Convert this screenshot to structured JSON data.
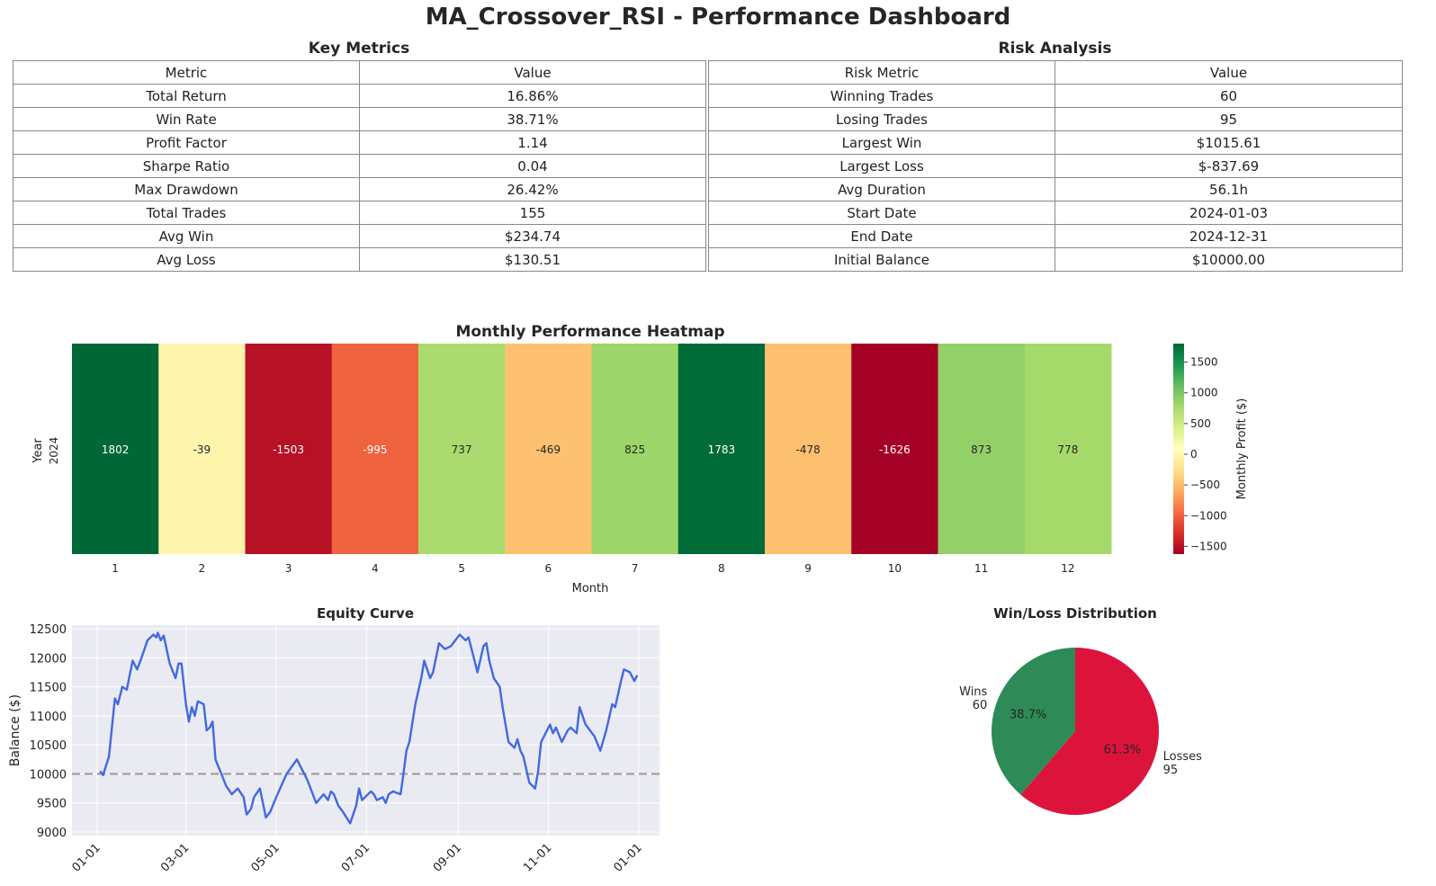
{
  "title": "MA_Crossover_RSI - Performance Dashboard",
  "key_metrics": {
    "title": "Key Metrics",
    "headers": [
      "Metric",
      "Value"
    ],
    "rows": [
      [
        "Total Return",
        "16.86%"
      ],
      [
        "Win Rate",
        "38.71%"
      ],
      [
        "Profit Factor",
        "1.14"
      ],
      [
        "Sharpe Ratio",
        "0.04"
      ],
      [
        "Max Drawdown",
        "26.42%"
      ],
      [
        "Total Trades",
        "155"
      ],
      [
        "Avg Win",
        "$234.74"
      ],
      [
        "Avg Loss",
        "$130.51"
      ]
    ]
  },
  "risk_analysis": {
    "title": "Risk Analysis",
    "headers": [
      "Risk Metric",
      "Value"
    ],
    "rows": [
      [
        "Winning Trades",
        "60"
      ],
      [
        "Losing Trades",
        "95"
      ],
      [
        "Largest Win",
        "$1015.61"
      ],
      [
        "Largest Loss",
        "$-837.69"
      ],
      [
        "Avg Duration",
        "56.1h"
      ],
      [
        "Start Date",
        "2024-01-03"
      ],
      [
        "End Date",
        "2024-12-31"
      ],
      [
        "Initial Balance",
        "$10000.00"
      ]
    ]
  },
  "chart_data": [
    {
      "type": "heatmap",
      "title": "Monthly Performance Heatmap",
      "xlabel": "Month",
      "ylabel": "Year",
      "y_categories": [
        "2024"
      ],
      "x_categories": [
        "1",
        "2",
        "3",
        "4",
        "5",
        "6",
        "7",
        "8",
        "9",
        "10",
        "11",
        "12"
      ],
      "values": [
        [
          1802,
          -39,
          -1503,
          -995,
          737,
          -469,
          825,
          1783,
          -478,
          -1626,
          873,
          778
        ]
      ],
      "colormap": "RdYlGn",
      "vmin": -1626,
      "vmax": 1802,
      "colorbar_label": "Monthly Profit ($)",
      "colorbar_ticks": [
        1500,
        1000,
        500,
        0,
        -500,
        -1000,
        -1500
      ]
    },
    {
      "type": "line",
      "title": "Equity Curve",
      "xlabel": "",
      "ylabel": "Balance ($)",
      "ylim": [
        9000,
        12500
      ],
      "y_ticks": [
        12500,
        12000,
        11500,
        11000,
        10500,
        10000,
        9500,
        9000
      ],
      "x_ticks": [
        "01-01",
        "03-01",
        "05-01",
        "07-01",
        "09-01",
        "11-01",
        "01-01"
      ],
      "x_tick_dates": [
        "2024-01-01",
        "2024-03-01",
        "2024-05-01",
        "2024-07-01",
        "2024-09-01",
        "2024-11-01",
        "2025-01-01"
      ],
      "reference_line": 10000,
      "grid": true,
      "color": "#4169e1",
      "x": [
        "2024-01-03",
        "2024-01-05",
        "2024-01-09",
        "2024-01-13",
        "2024-01-15",
        "2024-01-18",
        "2024-01-21",
        "2024-01-25",
        "2024-01-28",
        "2024-01-31",
        "2024-02-04",
        "2024-02-08",
        "2024-02-10",
        "2024-02-11",
        "2024-02-13",
        "2024-02-15",
        "2024-02-19",
        "2024-02-23",
        "2024-02-25",
        "2024-02-27",
        "2024-03-01",
        "2024-03-03",
        "2024-03-05",
        "2024-03-07",
        "2024-03-09",
        "2024-03-13",
        "2024-03-15",
        "2024-03-17",
        "2024-03-19",
        "2024-03-21",
        "2024-03-25",
        "2024-03-28",
        "2024-04-01",
        "2024-04-05",
        "2024-04-09",
        "2024-04-11",
        "2024-04-14",
        "2024-04-16",
        "2024-04-20",
        "2024-04-24",
        "2024-04-27",
        "2024-05-01",
        "2024-05-08",
        "2024-05-15",
        "2024-05-22",
        "2024-05-28",
        "2024-06-02",
        "2024-06-05",
        "2024-06-07",
        "2024-06-09",
        "2024-06-12",
        "2024-06-15",
        "2024-06-20",
        "2024-06-24",
        "2024-06-26",
        "2024-06-28",
        "2024-07-04",
        "2024-07-06",
        "2024-07-08",
        "2024-07-12",
        "2024-07-14",
        "2024-07-16",
        "2024-07-19",
        "2024-07-21",
        "2024-07-24",
        "2024-07-26",
        "2024-07-28",
        "2024-07-30",
        "2024-08-03",
        "2024-08-07",
        "2024-08-09",
        "2024-08-13",
        "2024-08-15",
        "2024-08-19",
        "2024-08-23",
        "2024-08-27",
        "2024-09-02",
        "2024-09-06",
        "2024-09-08",
        "2024-09-10",
        "2024-09-14",
        "2024-09-18",
        "2024-09-20",
        "2024-09-22",
        "2024-09-25",
        "2024-09-29",
        "2024-10-01",
        "2024-10-05",
        "2024-10-09",
        "2024-10-11",
        "2024-10-13",
        "2024-10-15",
        "2024-10-19",
        "2024-10-23",
        "2024-10-25",
        "2024-10-27",
        "2024-11-02",
        "2024-11-04",
        "2024-11-06",
        "2024-11-10",
        "2024-11-14",
        "2024-11-16",
        "2024-11-20",
        "2024-11-22",
        "2024-11-26",
        "2024-12-02",
        "2024-12-06",
        "2024-12-10",
        "2024-12-14",
        "2024-12-16",
        "2024-12-20",
        "2024-12-22",
        "2024-12-26",
        "2024-12-29",
        "2024-12-31"
      ],
      "y": [
        10050,
        9980,
        10300,
        11300,
        11200,
        11500,
        11450,
        11950,
        11800,
        12000,
        12300,
        12400,
        12350,
        12430,
        12300,
        12380,
        11900,
        11650,
        11900,
        11900,
        11200,
        10900,
        11150,
        11000,
        11250,
        11200,
        10750,
        10800,
        10900,
        10250,
        10000,
        9800,
        9650,
        9750,
        9600,
        9300,
        9400,
        9600,
        9750,
        9250,
        9350,
        9600,
        10000,
        10250,
        9900,
        9500,
        9650,
        9550,
        9700,
        9650,
        9450,
        9350,
        9150,
        9450,
        9750,
        9550,
        9700,
        9650,
        9550,
        9600,
        9500,
        9650,
        9700,
        9680,
        9650,
        10000,
        10400,
        10550,
        11200,
        11650,
        11950,
        11650,
        11750,
        12250,
        12150,
        12200,
        12400,
        12300,
        12350,
        12150,
        11750,
        12200,
        12250,
        11950,
        11650,
        11500,
        11150,
        10550,
        10450,
        10600,
        10400,
        10300,
        9850,
        9750,
        10050,
        10550,
        10850,
        10700,
        10800,
        10550,
        10750,
        10800,
        10700,
        11150,
        10850,
        10650,
        10400,
        10750,
        11200,
        11150,
        11600,
        11800,
        11750,
        11600,
        11700
      ]
    },
    {
      "type": "pie",
      "title": "Win/Loss Distribution",
      "labels": [
        "Wins",
        "Losses"
      ],
      "counts": [
        "60",
        "95"
      ],
      "values": [
        38.7,
        61.3
      ],
      "pct_labels": [
        "38.7%",
        "61.3%"
      ],
      "colors": [
        "#2e8b57",
        "#dc143c"
      ]
    }
  ]
}
